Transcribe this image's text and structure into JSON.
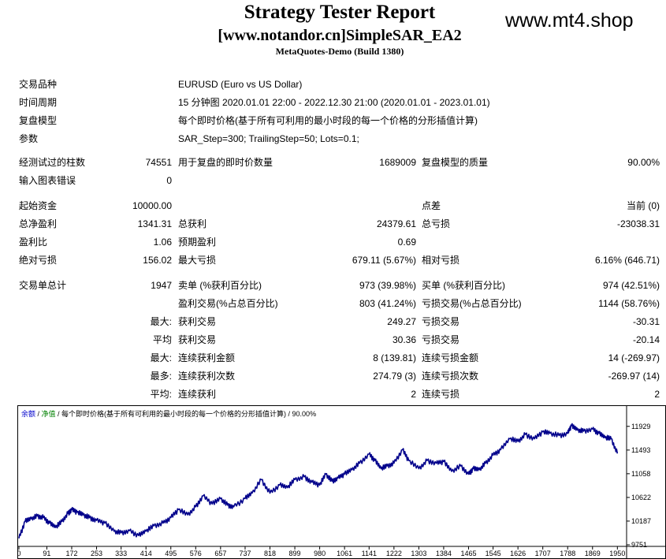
{
  "header": {
    "title": "Strategy Tester Report",
    "ea_name": "[www.notandor.cn]SimpleSAR_EA2",
    "build": "MetaQuotes-Demo (Build 1380)",
    "watermark": "www.mt4.shop"
  },
  "info": {
    "symbol_label": "交易品种",
    "symbol_value": "EURUSD (Euro vs US Dollar)",
    "period_label": "时间周期",
    "period_value": "15 分钟图 2020.01.01 22:00 - 2022.12.30 21:00 (2020.01.01 - 2023.01.01)",
    "model_label": "复盘模型",
    "model_value": "每个即时价格(基于所有可利用的最小时段的每一个价格的分形插值计算)",
    "params_label": "参数",
    "params_value": "SAR_Step=300; TrailingStep=50; Lots=0.1;"
  },
  "stats": {
    "bars_label": "经测试过的柱数",
    "bars_value": "74551",
    "ticks_label": "用于复盘的即时价数量",
    "ticks_value": "1689009",
    "quality_label": "复盘模型的质量",
    "quality_value": "90.00%",
    "mismatch_label": "输入图表错误",
    "mismatch_value": "0",
    "deposit_label": "起始资金",
    "deposit_value": "10000.00",
    "spread_label": "点差",
    "spread_value": "当前 (0)",
    "net_label": "总净盈利",
    "net_value": "1341.31",
    "gross_profit_label": "总获利",
    "gross_profit_value": "24379.61",
    "gross_loss_label": "总亏损",
    "gross_loss_value": "-23038.31",
    "pf_label": "盈利比",
    "pf_value": "1.06",
    "payoff_label": "预期盈利",
    "payoff_value": "0.69",
    "abs_dd_label": "绝对亏损",
    "abs_dd_value": "156.02",
    "max_dd_label": "最大亏损",
    "max_dd_value": "679.11 (5.67%)",
    "rel_dd_label": "相对亏损",
    "rel_dd_value": "6.16% (646.71)",
    "trades_label": "交易单总计",
    "trades_value": "1947",
    "short_label": "卖单 (%获利百分比)",
    "short_value": "973 (39.98%)",
    "long_label": "买单 (%获利百分比)",
    "long_value": "974 (42.51%)",
    "profit_trades_label": "盈利交易(%占总百分比)",
    "profit_trades_value": "803 (41.24%)",
    "loss_trades_label": "亏损交易(%占总百分比)",
    "loss_trades_value": "1144 (58.76%)",
    "largest_prefix": "最大:",
    "largest_profit_label": "获利交易",
    "largest_profit_value": "249.27",
    "largest_loss_label": "亏损交易",
    "largest_loss_value": "-30.31",
    "average_prefix": "平均",
    "average_profit_label": "获利交易",
    "average_profit_value": "30.36",
    "average_loss_label": "亏损交易",
    "average_loss_value": "-20.14",
    "max_cons_prefix": "最大:",
    "max_cons_wins_label": "连续获利金额",
    "max_cons_wins_value": "8 (139.81)",
    "max_cons_losses_label": "连续亏损金额",
    "max_cons_losses_value": "14 (-269.97)",
    "most_prefix": "最多:",
    "max_cons_profit_label": "连续获利次数",
    "max_cons_profit_value": "274.79 (3)",
    "max_cons_loss_label": "连续亏损次数",
    "max_cons_loss_value": "-269.97 (14)",
    "avg_cons_prefix": "平均:",
    "avg_cons_wins_label": "连续获利",
    "avg_cons_wins_value": "2",
    "avg_cons_losses_label": "连续亏损",
    "avg_cons_losses_value": "2"
  },
  "chart_caption": {
    "balance": "余额",
    "sep": " / ",
    "equity": "净值",
    "rest": " / 每个即时价格(基于所有可利用的最小时段的每一个价格的分形插值计算) / 90.00%"
  },
  "chart_data": {
    "type": "line",
    "title": "",
    "xlabel": "",
    "ylabel": "",
    "x_ticks": [
      0,
      91,
      172,
      253,
      333,
      414,
      495,
      576,
      657,
      737,
      818,
      899,
      980,
      1061,
      1141,
      1222,
      1303,
      1384,
      1465,
      1545,
      1626,
      1707,
      1788,
      1869,
      1950
    ],
    "y_ticks": [
      9751,
      10187,
      10622,
      11058,
      11493,
      11929
    ],
    "xlim": [
      0,
      1980
    ],
    "ylim": [
      9751,
      12085
    ],
    "series_color": "#00008b",
    "series": [
      {
        "x": [
          0,
          20,
          40,
          60,
          80,
          100,
          120,
          140,
          160,
          172,
          190,
          210,
          230,
          253,
          280,
          310,
          333,
          360,
          390,
          414,
          440,
          470,
          495,
          520,
          550,
          576,
          600,
          630,
          657,
          680,
          700,
          737,
          760,
          790,
          818,
          850,
          875,
          899,
          930,
          955,
          980,
          1000,
          1020,
          1040,
          1061,
          1085,
          1110,
          1141,
          1160,
          1180,
          1200,
          1222,
          1250,
          1270,
          1303,
          1330,
          1360,
          1384,
          1410,
          1440,
          1465,
          1480,
          1500,
          1520,
          1545,
          1570,
          1600,
          1626,
          1650,
          1680,
          1707,
          1730,
          1760,
          1788,
          1800,
          1820,
          1840,
          1869,
          1890,
          1910,
          1930,
          1950
        ],
        "y": [
          9870,
          10180,
          10230,
          10280,
          10250,
          10150,
          10070,
          10180,
          10330,
          10400,
          10350,
          10300,
          10250,
          10200,
          10150,
          10000,
          9970,
          10010,
          9920,
          10000,
          10100,
          10150,
          10250,
          10400,
          10300,
          10450,
          10650,
          10500,
          10600,
          10480,
          10450,
          10600,
          10700,
          10950,
          10700,
          10850,
          10800,
          10950,
          11000,
          10900,
          10850,
          11050,
          10920,
          10980,
          11050,
          11130,
          11250,
          11420,
          11300,
          11150,
          11200,
          11250,
          11500,
          11300,
          11150,
          11300,
          11250,
          11280,
          11100,
          11200,
          11050,
          11150,
          11130,
          11250,
          11400,
          11500,
          11700,
          11650,
          11780,
          11700,
          11830,
          11800,
          11760,
          11800,
          11940,
          11860,
          11840,
          11880,
          11800,
          11720,
          11700,
          11430
        ]
      }
    ]
  }
}
